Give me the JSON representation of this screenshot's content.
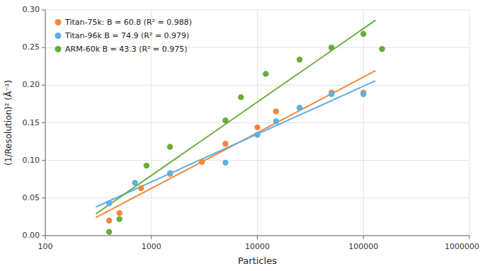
{
  "chart_data": {
    "type": "scatter",
    "xlabel": "Particles",
    "ylabel": "(1/Resolution)² (Å⁻²)",
    "log": "x",
    "grid": true,
    "legend": "top-left",
    "xlim": [
      100,
      1000000
    ],
    "xticks": [
      100,
      1000,
      10000,
      100000,
      1000000
    ],
    "ylim": [
      0,
      0.3
    ],
    "yticks": [
      {
        "value": 0,
        "label": "0.00"
      },
      {
        "value": 0.05,
        "label": "0.05"
      },
      {
        "value": 0.1,
        "label": "0.10"
      },
      {
        "value": 0.15,
        "label": "0.15"
      },
      {
        "value": 0.2,
        "label": "0.20"
      },
      {
        "value": 0.25,
        "label": "0.25"
      },
      {
        "value": 0.3,
        "label": "0.30"
      }
    ],
    "series": [
      {
        "name": "Titan-75k: B = 60.8 (R² = 0.988)",
        "color": "#f4873b",
        "marker": "circle",
        "x": [
          400,
          500,
          800,
          1500,
          3000,
          5000,
          10000,
          15000,
          50000,
          100000
        ],
        "values": [
          0.02,
          0.03,
          0.063,
          0.082,
          0.098,
          0.122,
          0.144,
          0.165,
          0.19,
          0.19
        ],
        "fit_x": [
          300,
          130000
        ],
        "fit_values": [
          0.0241,
          0.2192
        ]
      },
      {
        "name": "Titan-96k B = 74.9 (R² = 0.979)",
        "color": "#5bb0e8",
        "marker": "circle",
        "x": [
          400,
          700,
          1500,
          5000,
          10000,
          15000,
          25000,
          50000,
          100000
        ],
        "values": [
          0.043,
          0.07,
          0.083,
          0.097,
          0.134,
          0.152,
          0.17,
          0.188,
          0.188
        ],
        "fit_x": [
          300,
          130000
        ],
        "fit_values": [
          0.0381,
          0.2058
        ]
      },
      {
        "name": "ARM-60k B = 43.3 (R² = 0.975)",
        "color": "#6aaa3c",
        "marker": "circle",
        "x": [
          400,
          500,
          900,
          1500,
          5000,
          7000,
          12000,
          25000,
          50000,
          100000,
          150000
        ],
        "values": [
          0.005,
          0.022,
          0.093,
          0.118,
          0.153,
          0.184,
          0.215,
          0.234,
          0.25,
          0.268,
          0.248
        ],
        "fit_x": [
          300,
          130000
        ],
        "fit_values": [
          0.0289,
          0.2863
        ]
      }
    ]
  }
}
